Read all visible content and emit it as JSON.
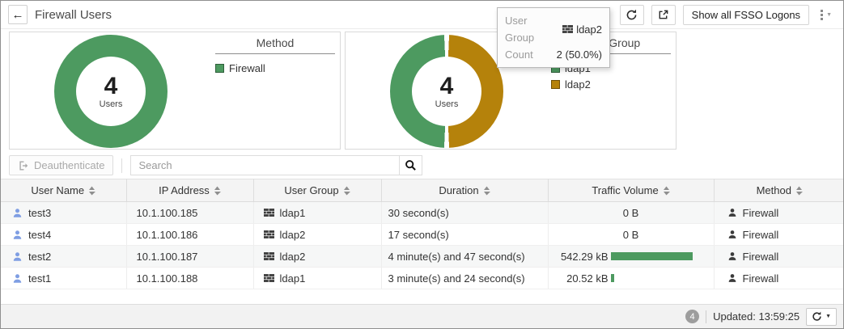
{
  "header": {
    "title": "Firewall Users",
    "fsso_button": "Show all FSSO Logons"
  },
  "tooltip": {
    "user_group_label": "User Group",
    "user_group_value": "ldap2",
    "count_label": "Count",
    "count_value": "2 (50.0%)"
  },
  "chart_data": [
    {
      "type": "donut",
      "title": "Method",
      "center_value": "4",
      "center_label": "Users",
      "segments": [
        {
          "label": "Firewall",
          "value": 4,
          "pct": 100,
          "color": "#4d9a60"
        }
      ]
    },
    {
      "type": "donut",
      "title": "User Group",
      "center_value": "4",
      "center_label": "Users",
      "segments": [
        {
          "label": "ldap1",
          "value": 2,
          "pct": 50,
          "color": "#4d9a60"
        },
        {
          "label": "ldap2",
          "value": 2,
          "pct": 50,
          "color": "#b5820b"
        }
      ]
    }
  ],
  "toolbar": {
    "deauthenticate_label": "Deauthenticate",
    "search_placeholder": "Search"
  },
  "table": {
    "columns": [
      "User Name",
      "IP Address",
      "User Group",
      "Duration",
      "Traffic Volume",
      "Method"
    ],
    "rows": [
      {
        "user": "test3",
        "ip": "10.1.100.185",
        "group": "ldap1",
        "duration": "30 second(s)",
        "traffic": "0 B",
        "traffic_bar_pct": 0,
        "method": "Firewall"
      },
      {
        "user": "test4",
        "ip": "10.1.100.186",
        "group": "ldap2",
        "duration": "17 second(s)",
        "traffic": "0 B",
        "traffic_bar_pct": 0,
        "method": "Firewall"
      },
      {
        "user": "test2",
        "ip": "10.1.100.187",
        "group": "ldap2",
        "duration": "4 minute(s) and 47 second(s)",
        "traffic": "542.29 kB",
        "traffic_bar_pct": 100,
        "method": "Firewall"
      },
      {
        "user": "test1",
        "ip": "10.1.100.188",
        "group": "ldap1",
        "duration": "3 minute(s) and 24 second(s)",
        "traffic": "20.52 kB",
        "traffic_bar_pct": 4,
        "method": "Firewall"
      }
    ]
  },
  "footer": {
    "count_badge": "4",
    "updated_label": "Updated: 13:59:25"
  },
  "colors": {
    "green": "#4d9a60",
    "gold": "#b5820b",
    "traffic_bar": "#4d9a60"
  }
}
